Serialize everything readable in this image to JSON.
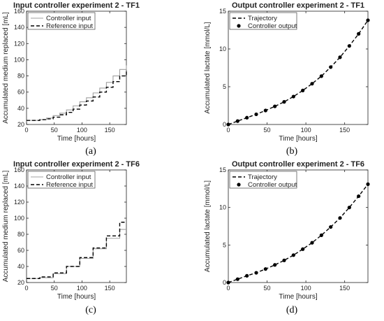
{
  "chart_data": [
    {
      "type": "line",
      "panel_label": "(a)",
      "title": "Input controller experiment 2 - TF1",
      "xlabel": "Time [hours]",
      "ylabel": "Accumulated medium replaced [mL]",
      "xlim": [
        0,
        180
      ],
      "ylim": [
        20,
        160
      ],
      "xticks": [
        0,
        50,
        100,
        150
      ],
      "yticks": [
        20,
        40,
        60,
        80,
        100,
        120,
        140,
        160
      ],
      "legend_position": "top-left",
      "series": [
        {
          "name": "Controller input",
          "style": "step-solid",
          "color": "#a0a0a0",
          "x": [
            0,
            12,
            24,
            36,
            48,
            60,
            72,
            84,
            96,
            108,
            120,
            132,
            144,
            156,
            168,
            180
          ],
          "y": [
            25,
            25,
            26,
            28,
            31,
            34,
            38,
            43,
            48,
            53,
            59,
            65,
            72,
            80,
            88,
            93
          ]
        },
        {
          "name": "Reference input",
          "style": "step-dashed",
          "color": "#000000",
          "x": [
            0,
            12,
            24,
            36,
            48,
            60,
            72,
            84,
            96,
            108,
            120,
            132,
            144,
            156,
            168,
            180
          ],
          "y": [
            25,
            25,
            26,
            27,
            29,
            32,
            35,
            39,
            44,
            49,
            54,
            60,
            66,
            73,
            80,
            87
          ]
        }
      ]
    },
    {
      "type": "line",
      "panel_label": "(b)",
      "title": "Output controller experiment 2 - TF1",
      "xlabel": "Time [hours]",
      "ylabel": "Accumulated lactate [mmol/L]",
      "xlim": [
        0,
        180
      ],
      "ylim": [
        0,
        15
      ],
      "xticks": [
        0,
        50,
        100,
        150
      ],
      "yticks": [
        0,
        5,
        10,
        15
      ],
      "legend_position": "top-left",
      "series": [
        {
          "name": "Trajectory",
          "style": "dashed",
          "color": "#000000",
          "x": [
            0,
            12,
            24,
            36,
            48,
            60,
            72,
            84,
            96,
            108,
            120,
            132,
            144,
            156,
            168,
            180
          ],
          "y": [
            0,
            0.45,
            0.9,
            1.35,
            1.85,
            2.4,
            3.0,
            3.7,
            4.5,
            5.4,
            6.4,
            7.6,
            8.9,
            10.4,
            12.0,
            13.8
          ]
        },
        {
          "name": "Controller output",
          "style": "markers",
          "color": "#000000",
          "x": [
            0,
            12,
            24,
            36,
            48,
            60,
            72,
            84,
            96,
            108,
            120,
            132,
            144,
            156,
            168,
            180
          ],
          "y": [
            0,
            0.45,
            0.9,
            1.35,
            1.85,
            2.4,
            3.0,
            3.7,
            4.5,
            5.4,
            6.4,
            7.6,
            8.9,
            10.4,
            12.0,
            13.8
          ]
        }
      ]
    },
    {
      "type": "line",
      "panel_label": "(c)",
      "title": "Input controller experiment 2 - TF6",
      "xlabel": "Time [hours]",
      "ylabel": "Accumulated medium replaced [mL]",
      "xlim": [
        0,
        180
      ],
      "ylim": [
        20,
        160
      ],
      "xticks": [
        0,
        50,
        100,
        150
      ],
      "yticks": [
        20,
        40,
        60,
        80,
        100,
        120,
        140,
        160
      ],
      "legend_position": "top-left",
      "series": [
        {
          "name": "Controller input",
          "style": "step-solid",
          "color": "#a0a0a0",
          "x": [
            0,
            24,
            48,
            72,
            96,
            120,
            144,
            168,
            180
          ],
          "y": [
            25,
            26,
            31,
            40,
            50,
            62,
            75,
            86,
            86
          ]
        },
        {
          "name": "Reference input",
          "style": "step-dashed",
          "color": "#000000",
          "x": [
            0,
            24,
            48,
            72,
            96,
            120,
            144,
            168,
            180
          ],
          "y": [
            25,
            27,
            32,
            40,
            51,
            63,
            78,
            95,
            95
          ]
        }
      ]
    },
    {
      "type": "line",
      "panel_label": "(d)",
      "title": "Output controller experiment 2 - TF6",
      "xlabel": "Time [hours]",
      "ylabel": "Accumulated lactate [mmol/L]",
      "xlim": [
        0,
        180
      ],
      "ylim": [
        0,
        15
      ],
      "xticks": [
        0,
        50,
        100,
        150
      ],
      "yticks": [
        0,
        5,
        10,
        15
      ],
      "legend_position": "top-left",
      "series": [
        {
          "name": "Trajectory",
          "style": "dashed",
          "color": "#000000",
          "x": [
            0,
            12,
            24,
            36,
            48,
            60,
            72,
            84,
            96,
            108,
            120,
            132,
            144,
            156,
            168,
            180
          ],
          "y": [
            0,
            0.45,
            0.9,
            1.3,
            1.8,
            2.35,
            2.95,
            3.65,
            4.45,
            5.3,
            6.3,
            7.4,
            8.6,
            10.0,
            11.5,
            13.1
          ]
        },
        {
          "name": "Controller output",
          "style": "markers",
          "color": "#000000",
          "x": [
            0,
            12,
            24,
            36,
            48,
            60,
            72,
            84,
            96,
            108,
            120,
            132,
            144,
            156,
            168,
            180
          ],
          "y": [
            0,
            0.45,
            0.9,
            1.3,
            1.8,
            2.35,
            2.95,
            3.65,
            4.45,
            5.3,
            6.3,
            7.4,
            8.6,
            10.0,
            11.5,
            13.1
          ]
        }
      ]
    }
  ]
}
